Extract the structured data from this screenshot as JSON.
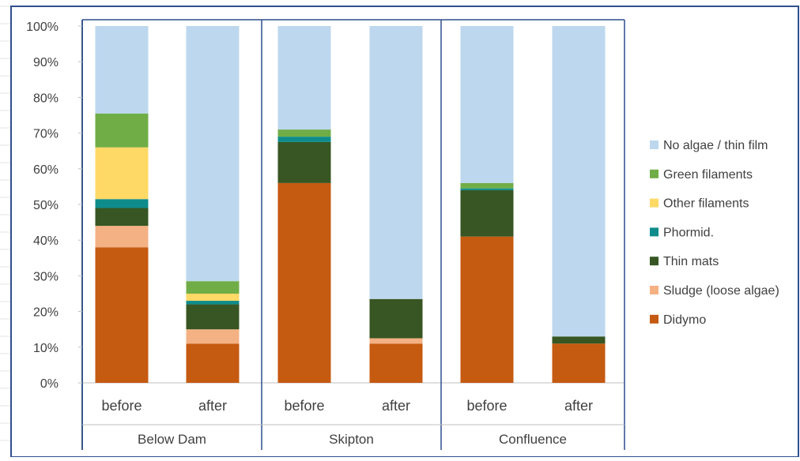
{
  "chart_data": {
    "type": "bar",
    "stacked": true,
    "percent_stacked": true,
    "title": "",
    "xlabel": "",
    "ylabel": "",
    "ylim": [
      0,
      100
    ],
    "y_ticks": [
      "0%",
      "10%",
      "20%",
      "30%",
      "40%",
      "50%",
      "60%",
      "70%",
      "80%",
      "90%",
      "100%"
    ],
    "groups": [
      {
        "label": "Below Dam",
        "categories": [
          "before",
          "after"
        ]
      },
      {
        "label": "Skipton",
        "categories": [
          "before",
          "after"
        ]
      },
      {
        "label": "Confluence",
        "categories": [
          "before",
          "after"
        ]
      }
    ],
    "categories": [
      "before",
      "after",
      "before",
      "after",
      "before",
      "after"
    ],
    "legend_position": "right",
    "legend_order": [
      "No algae / thin film",
      "Green filaments",
      "Other filaments",
      "Phormid.",
      "Thin mats",
      "Sludge (loose algae)",
      "Didymo"
    ],
    "series": [
      {
        "name": "Didymo",
        "color": "#C55A11",
        "values": [
          38,
          11,
          56,
          11,
          41,
          11
        ]
      },
      {
        "name": "Sludge (loose algae)",
        "color": "#F4B183",
        "values": [
          6,
          4,
          0,
          1.5,
          0,
          0
        ]
      },
      {
        "name": "Thin mats",
        "color": "#375623",
        "values": [
          5,
          7,
          11.5,
          11,
          13,
          2
        ]
      },
      {
        "name": "Phormid.",
        "color": "#0E8C8C",
        "values": [
          2.5,
          1,
          1.5,
          0,
          0.5,
          0
        ]
      },
      {
        "name": "Other filaments",
        "color": "#FFD966",
        "values": [
          14.5,
          2,
          0,
          0,
          0,
          0
        ]
      },
      {
        "name": "Green filaments",
        "color": "#70AD47",
        "values": [
          9.5,
          3.5,
          2,
          0,
          1.5,
          0
        ]
      },
      {
        "name": "No algae / thin film",
        "color": "#BDD7EE",
        "values": [
          24.5,
          71.5,
          29,
          76.5,
          44,
          87
        ]
      }
    ],
    "grid": false
  }
}
